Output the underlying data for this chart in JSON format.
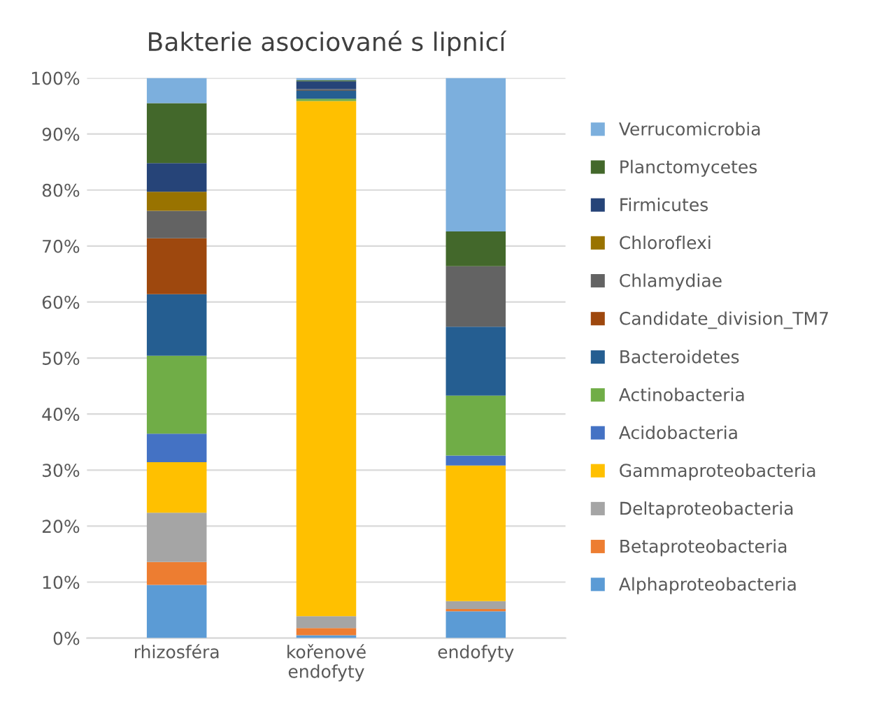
{
  "chart_data": {
    "type": "bar",
    "title": "Bakterie asociované s lipnicí",
    "stacked": true,
    "categories": [
      "rhizosféra",
      "kořenové\nendofyty",
      "endofyty"
    ],
    "ylim": [
      0,
      100
    ],
    "yticks": [
      {
        "value": 0,
        "label": "0%"
      },
      {
        "value": 10,
        "label": "10%"
      },
      {
        "value": 20,
        "label": "20%"
      },
      {
        "value": 30,
        "label": "30%"
      },
      {
        "value": 40,
        "label": "40%"
      },
      {
        "value": 50,
        "label": "50%"
      },
      {
        "value": 60,
        "label": "60%"
      },
      {
        "value": 70,
        "label": "70%"
      },
      {
        "value": 80,
        "label": "80%"
      },
      {
        "value": 90,
        "label": "90%"
      },
      {
        "value": 100,
        "label": "100%"
      }
    ],
    "grid": "y",
    "legend": "right",
    "series": [
      {
        "name": "Alphaproteobacteria",
        "color": "#5b9bd5",
        "values": [
          9.5,
          0.5,
          4.8
        ]
      },
      {
        "name": "Betaproteobacteria",
        "color": "#ed7d31",
        "values": [
          4.1,
          1.3,
          0.4
        ]
      },
      {
        "name": "Deltaproteobacteria",
        "color": "#a5a5a5",
        "values": [
          8.8,
          2.1,
          1.4
        ]
      },
      {
        "name": "Gammaproteobacteria",
        "color": "#ffc000",
        "values": [
          9.0,
          92.0,
          24.2
        ]
      },
      {
        "name": "Acidobacteria",
        "color": "#4472c4",
        "values": [
          5.1,
          0,
          1.8
        ]
      },
      {
        "name": "Actinobacteria",
        "color": "#70ad47",
        "values": [
          13.9,
          0.4,
          10.7
        ]
      },
      {
        "name": "Bacteroidetes",
        "color": "#255e91",
        "values": [
          11.0,
          1.4,
          12.3
        ]
      },
      {
        "name": "Candidate_division_TM7",
        "color": "#9e480e",
        "values": [
          10.0,
          0,
          0
        ]
      },
      {
        "name": "Chlamydiae",
        "color": "#636363",
        "values": [
          4.9,
          0.3,
          10.8
        ]
      },
      {
        "name": "Chloroflexi",
        "color": "#997300",
        "values": [
          3.4,
          0,
          0
        ]
      },
      {
        "name": "Firmicutes",
        "color": "#264478",
        "values": [
          5.1,
          1.4,
          0
        ]
      },
      {
        "name": "Planctomycetes",
        "color": "#43682b",
        "values": [
          10.7,
          0.2,
          6.2
        ]
      },
      {
        "name": "Verrucomicrobia",
        "color": "#7cafdd",
        "values": [
          4.5,
          0.4,
          27.4
        ]
      }
    ]
  }
}
